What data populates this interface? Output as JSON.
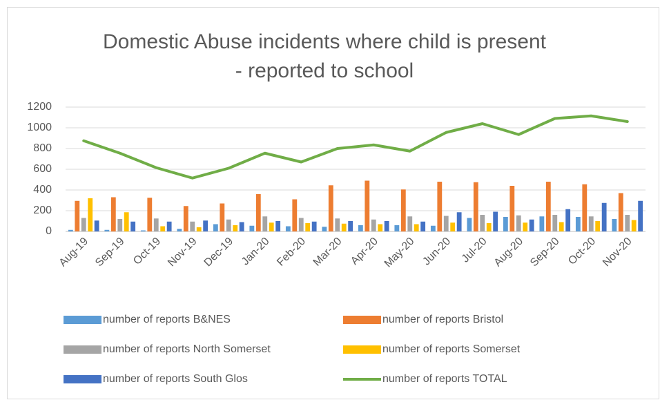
{
  "chart_data": {
    "type": "bar_line",
    "title": "Domestic Abuse incidents where child is present - reported to school",
    "categories": [
      "Aug-19",
      "Sep-19",
      "Oct-19",
      "Nov-19",
      "Dec-19",
      "Jan-20",
      "Feb-20",
      "Mar-20",
      "Apr-20",
      "May-20",
      "Jun-20",
      "Jul-20",
      "Aug-20",
      "Sep-20",
      "Oct-20",
      "Nov-20"
    ],
    "series": [
      {
        "name": "number of reports B&NES",
        "type": "bar",
        "color": "#5b9bd5",
        "values": [
          15,
          15,
          10,
          25,
          70,
          55,
          50,
          45,
          60,
          60,
          55,
          130,
          140,
          145,
          140,
          120
        ]
      },
      {
        "name": "number of reports Bristol",
        "type": "bar",
        "color": "#ed7d31",
        "values": [
          295,
          330,
          325,
          245,
          270,
          360,
          310,
          445,
          490,
          405,
          480,
          475,
          440,
          480,
          455,
          370
        ]
      },
      {
        "name": "number of reports North Somerset",
        "type": "bar",
        "color": "#a5a5a5",
        "values": [
          130,
          120,
          125,
          95,
          115,
          145,
          130,
          125,
          115,
          145,
          150,
          160,
          155,
          160,
          145,
          160
        ]
      },
      {
        "name": "number of reports Somerset",
        "type": "bar",
        "color": "#ffc000",
        "values": [
          320,
          185,
          50,
          40,
          60,
          85,
          80,
          75,
          70,
          70,
          85,
          80,
          85,
          90,
          100,
          110
        ]
      },
      {
        "name": "number of reports South Glos",
        "type": "bar",
        "color": "#4472c4",
        "values": [
          105,
          95,
          95,
          105,
          90,
          100,
          95,
          100,
          100,
          95,
          185,
          190,
          115,
          215,
          275,
          295
        ]
      },
      {
        "name": "number of reports TOTAL",
        "type": "line",
        "color": "#70ad47",
        "values": [
          875,
          755,
          615,
          515,
          610,
          755,
          670,
          800,
          835,
          775,
          955,
          1040,
          935,
          1090,
          1115,
          1060
        ]
      }
    ],
    "ylim": [
      0,
      1200
    ],
    "yticks": [
      0,
      200,
      400,
      600,
      800,
      1000,
      1200
    ],
    "grid": true,
    "legend": "bottom"
  }
}
